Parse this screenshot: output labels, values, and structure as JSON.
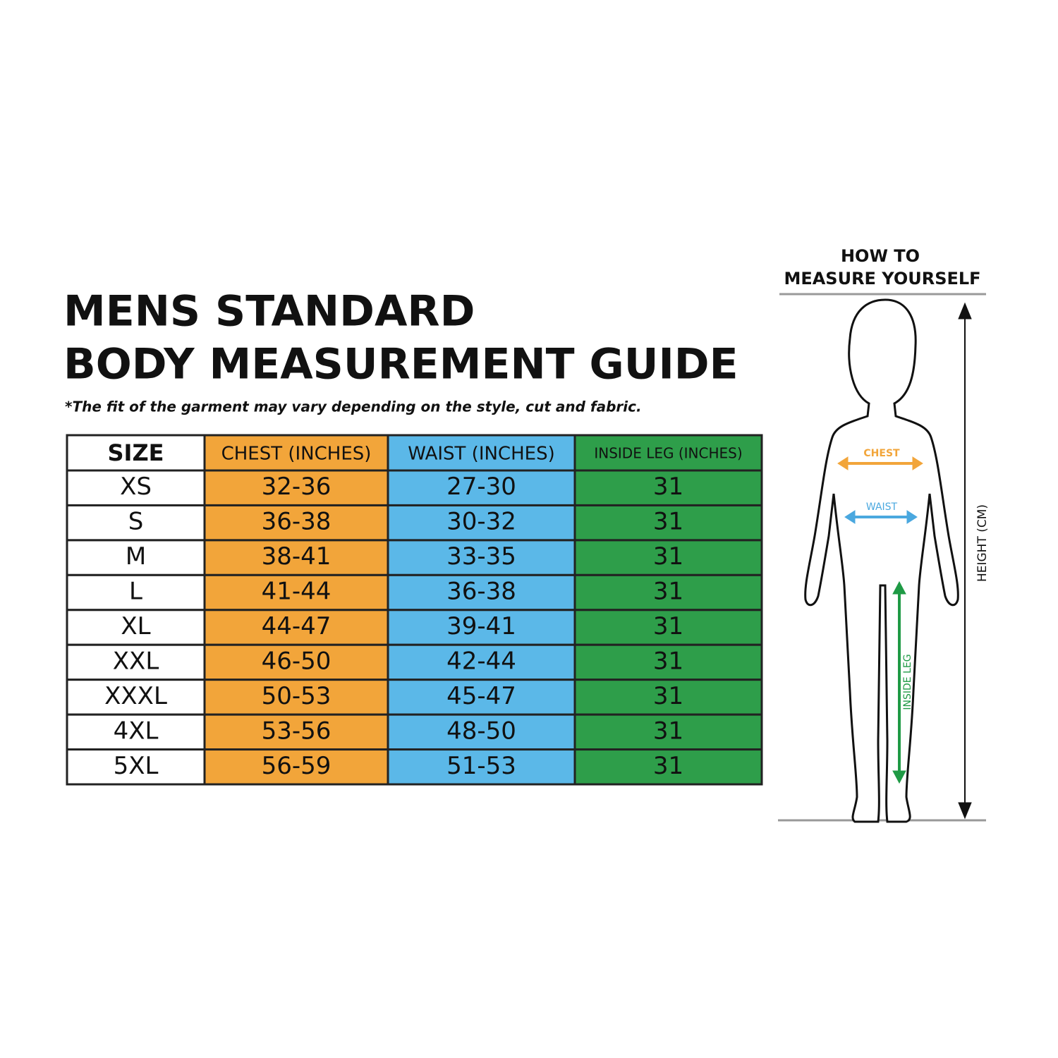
{
  "header": {
    "title_lines": [
      "MENS STANDARD",
      "BODY MEASUREMENT GUIDE"
    ],
    "note": "*The fit of the garment may vary depending on the style, cut and fabric."
  },
  "table": {
    "columns": [
      "SIZE",
      "CHEST (INCHES)",
      "WAIST (INCHES)",
      "INSIDE LEG (INCHES)"
    ],
    "rows": [
      [
        "XS",
        "32-36",
        "27-30",
        "31"
      ],
      [
        "S",
        "36-38",
        "30-32",
        "31"
      ],
      [
        "M",
        "38-41",
        "33-35",
        "31"
      ],
      [
        "L",
        "41-44",
        "36-38",
        "31"
      ],
      [
        "XL",
        "44-47",
        "39-41",
        "31"
      ],
      [
        "XXL",
        "46-50",
        "42-44",
        "31"
      ],
      [
        "XXXL",
        "50-53",
        "45-47",
        "31"
      ],
      [
        "4XL",
        "53-56",
        "48-50",
        "31"
      ],
      [
        "5XL",
        "56-59",
        "51-53",
        "31"
      ]
    ]
  },
  "diagram": {
    "title_lines": [
      "HOW TO",
      "MEASURE YOURSELF"
    ],
    "chest": "CHEST",
    "waist": "WAIST",
    "inside_leg": "INSIDE LEG",
    "height": "HEIGHT (CM)"
  }
}
